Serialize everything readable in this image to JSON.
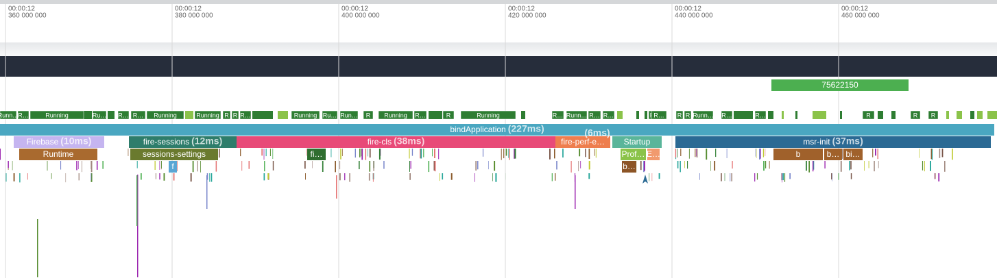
{
  "ruler": {
    "ticks": [
      {
        "time": "00:00:12",
        "ns": "360 000 000"
      },
      {
        "time": "00:00:12",
        "ns": "380 000 000"
      },
      {
        "time": "00:00:12",
        "ns": "400 000 000"
      },
      {
        "time": "00:00:12",
        "ns": "420 000 000"
      },
      {
        "time": "00:00:12",
        "ns": "440 000 000"
      },
      {
        "time": "00:00:12",
        "ns": "460 000 000"
      }
    ]
  },
  "counter": {
    "label": "75622150"
  },
  "thread_states": [
    "Runn…",
    "R…",
    "Running",
    "Ru…",
    "R…",
    "R…",
    "Running",
    "Running",
    "R",
    "R",
    "R…",
    "Running",
    "Ru…",
    "Run…",
    "R",
    "Running",
    "R…",
    "R",
    "Running",
    "R…",
    "Runn…",
    "R…",
    "R…",
    "R",
    "R…",
    "R",
    "R",
    "Runn…",
    "R…",
    "R…",
    "R",
    "R",
    "R"
  ],
  "slices": [
    {
      "name": "bindApplication",
      "duration": "(227ms)"
    },
    {
      "name": "Firebase",
      "duration": "(10ms)"
    },
    {
      "name": "fire-sessions",
      "duration": "(12ms)"
    },
    {
      "name": "fire-cls",
      "duration": "(38ms)"
    },
    {
      "name": "fire-perf-e…",
      "duration": "(6ms)"
    },
    {
      "name": "Startup"
    },
    {
      "name": "msr-init",
      "duration": "(37ms)"
    },
    {
      "name": "Runtime"
    },
    {
      "name": "sessions-settings"
    },
    {
      "name": "fi…"
    },
    {
      "name": "Prof…"
    },
    {
      "name": "E…"
    },
    {
      "name": "b"
    },
    {
      "name": "b…"
    },
    {
      "name": "bi…"
    },
    {
      "name": "f"
    },
    {
      "name": "b…"
    }
  ]
}
